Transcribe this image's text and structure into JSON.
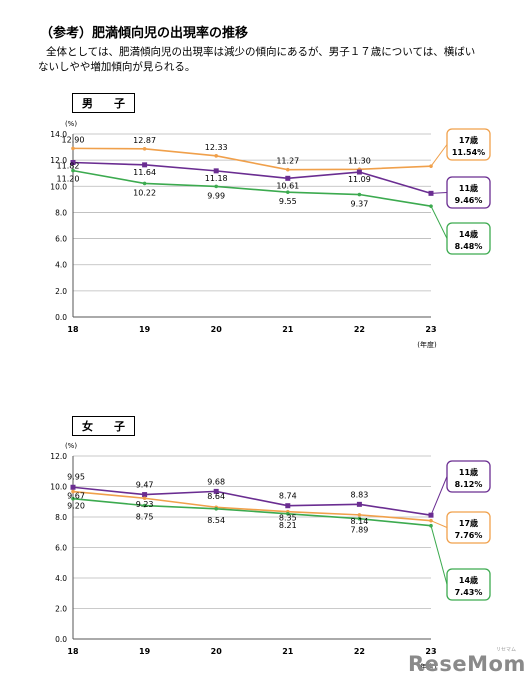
{
  "page": {
    "heading": "（参考）肥満傾向児の出現率の推移",
    "description_line1": "全体としては、肥満傾向児の出現率は減少の傾向にあるが、男子１７歳については、横ばい",
    "description_line2": "ないしやや増加傾向が見られる。"
  },
  "chart_data": [
    {
      "type": "line",
      "title": "男　子",
      "ylabel": "(%)",
      "xlabel": "(年度)",
      "categories": [
        "18",
        "19",
        "20",
        "21",
        "22",
        "23"
      ],
      "ylim": [
        0,
        14
      ],
      "yticks": [
        "0.0",
        "2.0",
        "4.0",
        "6.0",
        "8.0",
        "10.0",
        "12.0",
        "14.0"
      ],
      "grid": true,
      "series": [
        {
          "key": "age17",
          "color": "#f0a04b",
          "marker": "none",
          "values": [
            12.9,
            12.87,
            12.33,
            11.27,
            11.3,
            11.54
          ],
          "point_labels": [
            "12.90",
            "12.87",
            "12.33",
            "11.27",
            "11.30",
            ""
          ],
          "callout_name": "17歳",
          "callout_value": "11.54%"
        },
        {
          "key": "age11",
          "color": "#6a2d91",
          "marker": "square",
          "values": [
            11.82,
            11.64,
            11.18,
            10.61,
            11.09,
            9.46
          ],
          "point_labels": [
            "11.82",
            "11.64",
            "11.18",
            "10.61",
            "11.09",
            ""
          ],
          "callout_name": "11歳",
          "callout_value": "9.46%"
        },
        {
          "key": "age14",
          "color": "#3caa4f",
          "marker": "none",
          "values": [
            11.2,
            10.22,
            9.99,
            9.55,
            9.37,
            8.48
          ],
          "point_labels": [
            "11.20",
            "10.22",
            "9.99",
            "9.55",
            "9.37",
            ""
          ],
          "callout_name": "14歳",
          "callout_value": "8.48%"
        }
      ]
    },
    {
      "type": "line",
      "title": "女　子",
      "ylabel": "(%)",
      "xlabel": "(年度)",
      "categories": [
        "18",
        "19",
        "20",
        "21",
        "22",
        "23"
      ],
      "ylim": [
        0,
        12
      ],
      "yticks": [
        "0.0",
        "2.0",
        "4.0",
        "6.0",
        "8.0",
        "10.0",
        "12.0"
      ],
      "grid": true,
      "series": [
        {
          "key": "age11",
          "color": "#6a2d91",
          "marker": "square",
          "values": [
            9.95,
            9.47,
            9.68,
            8.74,
            8.83,
            8.12
          ],
          "point_labels": [
            "9.95",
            "9.47",
            "9.68",
            "8.74",
            "8.83",
            ""
          ],
          "callout_name": "11歳",
          "callout_value": "8.12%"
        },
        {
          "key": "age17",
          "color": "#f0a04b",
          "marker": "none",
          "values": [
            9.67,
            9.23,
            8.64,
            8.35,
            8.14,
            7.76
          ],
          "point_labels": [
            "9.67",
            "9.23",
            "8.64",
            "8.35",
            "8.14",
            ""
          ],
          "callout_name": "17歳",
          "callout_value": "7.76%"
        },
        {
          "key": "age14",
          "color": "#3caa4f",
          "marker": "none",
          "values": [
            9.2,
            8.75,
            8.54,
            8.21,
            7.89,
            7.43
          ],
          "point_labels": [
            "9.20",
            "8.75",
            "8.54",
            "8.21",
            "7.89",
            ""
          ],
          "callout_name": "14歳",
          "callout_value": "7.43%"
        }
      ]
    }
  ],
  "watermark": {
    "text": "ReseMom",
    "sub": "リセマム"
  }
}
